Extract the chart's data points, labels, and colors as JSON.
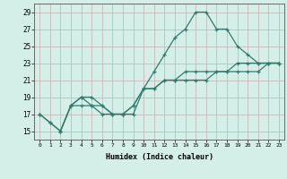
{
  "title": "",
  "xlabel": "Humidex (Indice chaleur)",
  "xlim": [
    -0.5,
    23.5
  ],
  "ylim": [
    14,
    30
  ],
  "xticks": [
    0,
    1,
    2,
    3,
    4,
    5,
    6,
    7,
    8,
    9,
    10,
    11,
    12,
    13,
    14,
    15,
    16,
    17,
    18,
    19,
    20,
    21,
    22,
    23
  ],
  "yticks": [
    15,
    17,
    19,
    21,
    23,
    25,
    27,
    29
  ],
  "background_color": "#d4eee8",
  "grid_color": "#c8b8b8",
  "line_color": "#2e7d6e",
  "series": [
    {
      "x": [
        0,
        1,
        2,
        3,
        4,
        5,
        6,
        7,
        8,
        9,
        10,
        11,
        12,
        13,
        14,
        15,
        16,
        17,
        18,
        19,
        20,
        21,
        22,
        23
      ],
      "y": [
        17,
        16,
        15,
        18,
        18,
        18,
        17,
        17,
        17,
        17,
        20,
        22,
        24,
        26,
        27,
        29,
        29,
        27,
        27,
        25,
        24,
        23,
        23,
        23
      ]
    },
    {
      "x": [
        0,
        1,
        2,
        3,
        4,
        5,
        6,
        7,
        8,
        9,
        10,
        11,
        12,
        13,
        14,
        15,
        16,
        17,
        18,
        19,
        20,
        21,
        22,
        23
      ],
      "y": [
        17,
        16,
        15,
        18,
        19,
        18,
        18,
        17,
        17,
        18,
        20,
        20,
        21,
        21,
        21,
        21,
        21,
        22,
        22,
        22,
        22,
        22,
        23,
        23
      ]
    },
    {
      "x": [
        2,
        3,
        4,
        5,
        6,
        7,
        8,
        9,
        10,
        11,
        12,
        13,
        14,
        15,
        16,
        17,
        18,
        19,
        20,
        21,
        22,
        23
      ],
      "y": [
        15,
        18,
        19,
        19,
        18,
        17,
        17,
        18,
        20,
        20,
        21,
        21,
        22,
        22,
        22,
        22,
        22,
        23,
        23,
        23,
        23,
        23
      ]
    }
  ]
}
